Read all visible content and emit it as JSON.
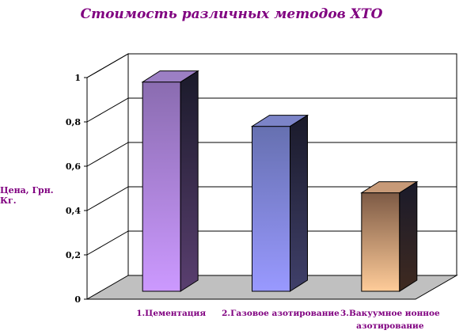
{
  "chart_data": {
    "type": "bar",
    "title": "Стоимость различных методов ХТО",
    "ylabel": "Цена, Грн. Кг.",
    "xlabel": "",
    "categories": [
      "1.Цементация",
      "2.Газовое азотирование",
      "3.Вакуумное ионное азотирование"
    ],
    "values": [
      0.98,
      0.78,
      0.48
    ],
    "ylim": [
      0,
      1
    ],
    "yticks": [
      "0",
      "0,2",
      "0,4",
      "0,6",
      "0,8",
      "1"
    ],
    "grid": true,
    "legend": "none",
    "colors": {
      "bars": [
        {
          "top": "#8a6cb0",
          "bottom": "#cc99ff",
          "side": "#5a3f70",
          "cap": "#9c7fc4"
        },
        {
          "top": "#6670b0",
          "bottom": "#9999ff",
          "side": "#40406a",
          "cap": "#7c84c8"
        },
        {
          "top": "#7d5a45",
          "bottom": "#ffcc99",
          "side": "#3f2a20",
          "cap": "#c79a78"
        }
      ],
      "floor": "#c0c0c0",
      "title": "#800080",
      "labels": "#800080"
    }
  }
}
